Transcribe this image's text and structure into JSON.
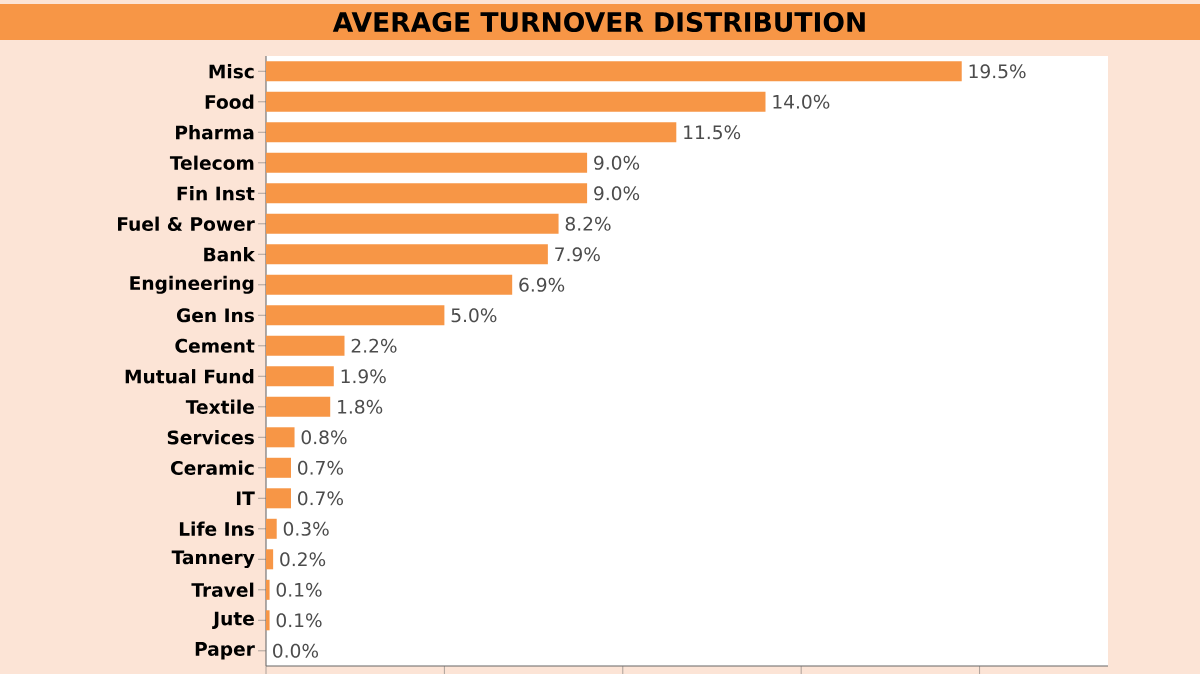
{
  "chart_data": {
    "type": "bar",
    "orientation": "horizontal",
    "title": "AVERAGE TURNOVER DISTRIBUTION",
    "categories": [
      "Misc",
      "Food",
      "Pharma",
      "Telecom",
      "Fin Inst",
      "Fuel & Power",
      "Bank",
      "Engineering",
      "Gen Ins",
      "Cement",
      "Mutual Fund",
      "Textile",
      "Services",
      "Ceramic",
      "IT",
      "Life Ins",
      "Tannery",
      "Travel",
      "Jute",
      "Paper"
    ],
    "values": [
      19.5,
      14.0,
      11.5,
      9.0,
      9.0,
      8.2,
      7.9,
      6.9,
      5.0,
      2.2,
      1.9,
      1.8,
      0.8,
      0.7,
      0.7,
      0.3,
      0.2,
      0.1,
      0.1,
      0.0
    ],
    "value_labels": [
      "19.5%",
      "14.0%",
      "11.5%",
      "9.0%",
      "9.0%",
      "8.2%",
      "7.9%",
      "6.9%",
      "5.0%",
      "2.2%",
      "1.9%",
      "1.8%",
      "0.8%",
      "0.7%",
      "0.7%",
      "0.3%",
      "0.2%",
      "0.1%",
      "0.1%",
      "0.0%"
    ],
    "color": "#f79646",
    "xlim": [
      0,
      23.6
    ],
    "xticks": [
      {
        "value": 0,
        "label": null
      },
      {
        "value": 5,
        "label": null
      },
      {
        "value": 10,
        "label": null
      },
      {
        "value": 15,
        "label": null
      },
      {
        "value": 20,
        "label": null
      }
    ],
    "tick_labels": "y"
  }
}
